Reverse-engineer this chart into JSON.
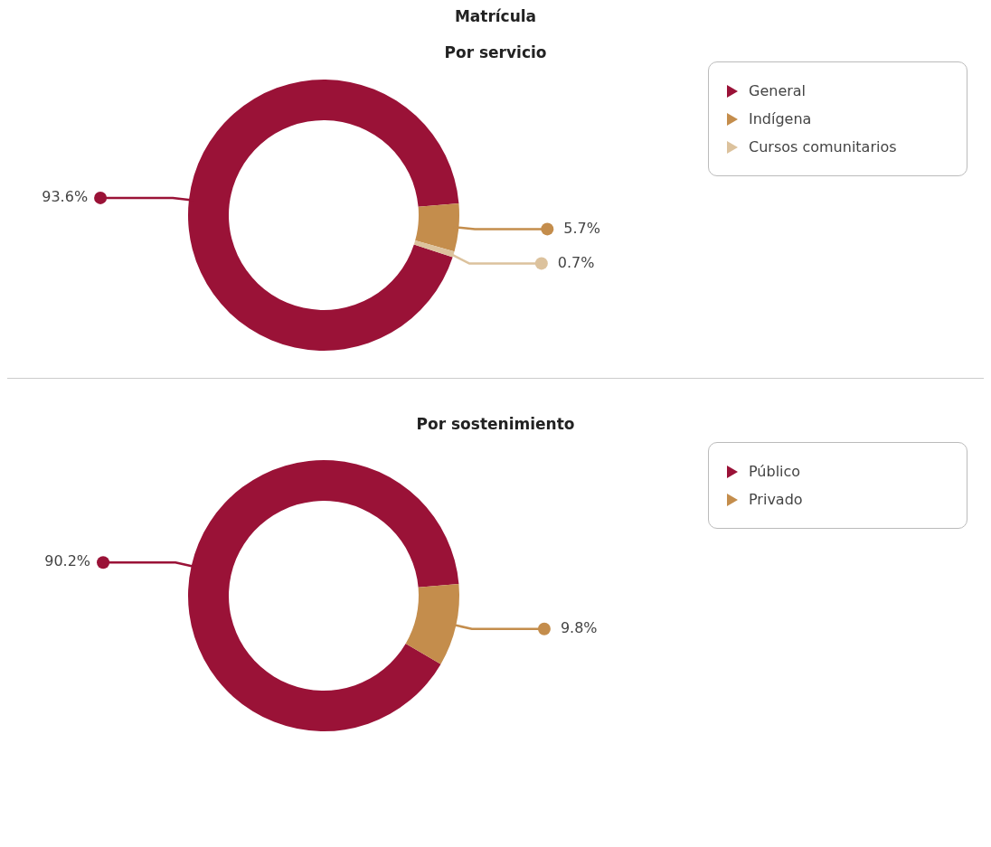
{
  "chart_data": [
    {
      "type": "donut",
      "title": "Matrícula",
      "subtitle": "Por servicio",
      "categories": [
        "General",
        "Indígena",
        "Cursos comunitarios"
      ],
      "values": [
        93.6,
        5.7,
        0.7
      ],
      "colors": [
        "#9a1237",
        "#c48d4c",
        "#dcc29d"
      ],
      "value_labels": [
        "93.6%",
        "5.7%",
        "0.7%"
      ],
      "legend": "top right"
    },
    {
      "type": "donut",
      "title": "Por sostenimiento",
      "categories": [
        "Público",
        "Privado"
      ],
      "values": [
        90.2,
        9.8
      ],
      "colors": [
        "#9a1237",
        "#c48d4c"
      ],
      "value_labels": [
        "90.2%",
        "9.8%"
      ],
      "legend": "top right"
    }
  ]
}
